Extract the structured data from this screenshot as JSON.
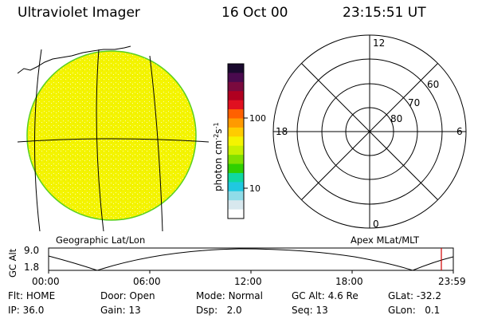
{
  "header": {
    "title": "Ultraviolet Imager",
    "date": "16 Oct 00",
    "time": "23:15:51 UT"
  },
  "colorbar": {
    "label_html": "photon cm<tspan baseline-shift=\"super\" font-size=\"8\">-2</tspan>s<tspan baseline-shift=\"super\" font-size=\"8\">-1</tspan>",
    "label": "photon cm-2s-1",
    "tick_high": "100",
    "tick_low": "10",
    "colors": [
      "#1a0a2e",
      "#4a0a4e",
      "#7a0a3e",
      "#b00020",
      "#e01020",
      "#ff6000",
      "#ff9a00",
      "#ffcc00",
      "#f4f400",
      "#c8f000",
      "#80e000",
      "#30d000",
      "#10d8a0",
      "#20c8e0",
      "#90dce8",
      "#d8e8ee",
      "#ffffff"
    ]
  },
  "globe": {
    "fill": "#f4f400",
    "rim": "#58d020"
  },
  "polar": {
    "label_top": "12",
    "label_bottom": "0",
    "label_left": "18",
    "label_right": "6",
    "lat_60": "60",
    "lat_70": "70",
    "lat_80": "80"
  },
  "captions": {
    "left": "Geographic Lat/Lon",
    "right": "Apex MLat/MLT"
  },
  "altitude_plot": {
    "ylabel": "GC Alt",
    "ymax": "9.0",
    "ymin": "1.8",
    "xticks": [
      "00:00",
      "06:00",
      "12:00",
      "18:00",
      "23:59"
    ],
    "current_marker_color": "#d00000"
  },
  "status": {
    "flt_label": "Flt:",
    "flt_value": "HOME",
    "door_label": "Door:",
    "door_value": "Open",
    "mode_label": "Mode:",
    "mode_value": "Normal",
    "gcalt_label": "GC Alt:",
    "gcalt_value": "4.6 Re",
    "glat_label": "GLat:",
    "glat_value": "-32.2",
    "ip_label": "IP:",
    "ip_value": "36.0",
    "gain_label": "Gain:",
    "gain_value": "13",
    "dsp_label": "Dsp:",
    "dsp_value": "2.0",
    "seq_label": "Seq:",
    "seq_value": "13",
    "glon_label": "GLon:",
    "glon_value": "0.1"
  }
}
